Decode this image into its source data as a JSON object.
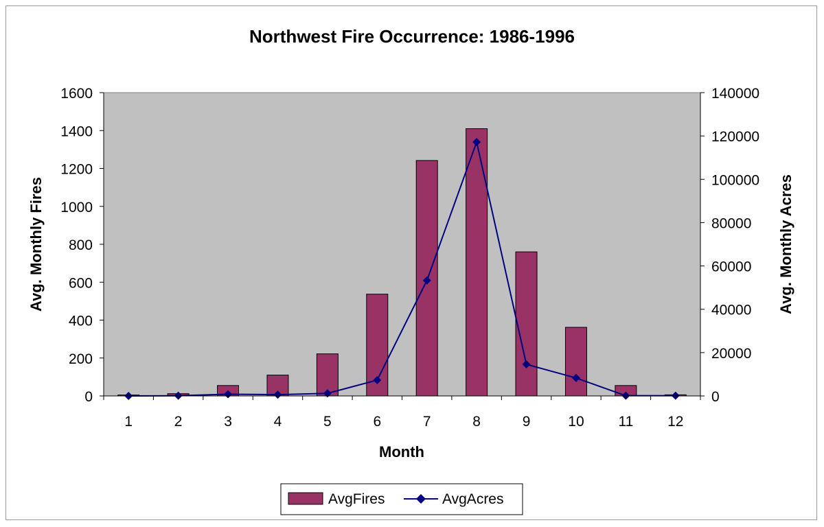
{
  "chart_data": {
    "type": "bar",
    "title": "Northwest Fire Occurrence: 1986-1996",
    "xlabel": "Month",
    "ylabel": "Avg. Monthly Fires",
    "y2label": "Avg. Monthly Acres",
    "categories": [
      "1",
      "2",
      "3",
      "4",
      "5",
      "6",
      "7",
      "8",
      "9",
      "10",
      "11",
      "12"
    ],
    "ylim": [
      0,
      1600
    ],
    "y2lim": [
      0,
      140000
    ],
    "yticks": [
      "0",
      "200",
      "400",
      "600",
      "800",
      "1000",
      "1200",
      "1400",
      "1600"
    ],
    "y2ticks": [
      "0",
      "20000",
      "40000",
      "60000",
      "80000",
      "100000",
      "120000",
      "140000"
    ],
    "series": [
      {
        "name": "AvgFires",
        "type": "bar",
        "axis": "left",
        "color": "#993366",
        "values": [
          5,
          12,
          55,
          110,
          222,
          537,
          1242,
          1410,
          760,
          362,
          55,
          6
        ]
      },
      {
        "name": "AvgAcres",
        "type": "line",
        "axis": "right",
        "color": "#000080",
        "values": [
          0,
          100,
          800,
          600,
          1200,
          7300,
          53300,
          117200,
          14600,
          8300,
          100,
          100
        ]
      }
    ],
    "plot_background": "#c0c0c0",
    "grid": false,
    "legend_position": "bottom"
  }
}
